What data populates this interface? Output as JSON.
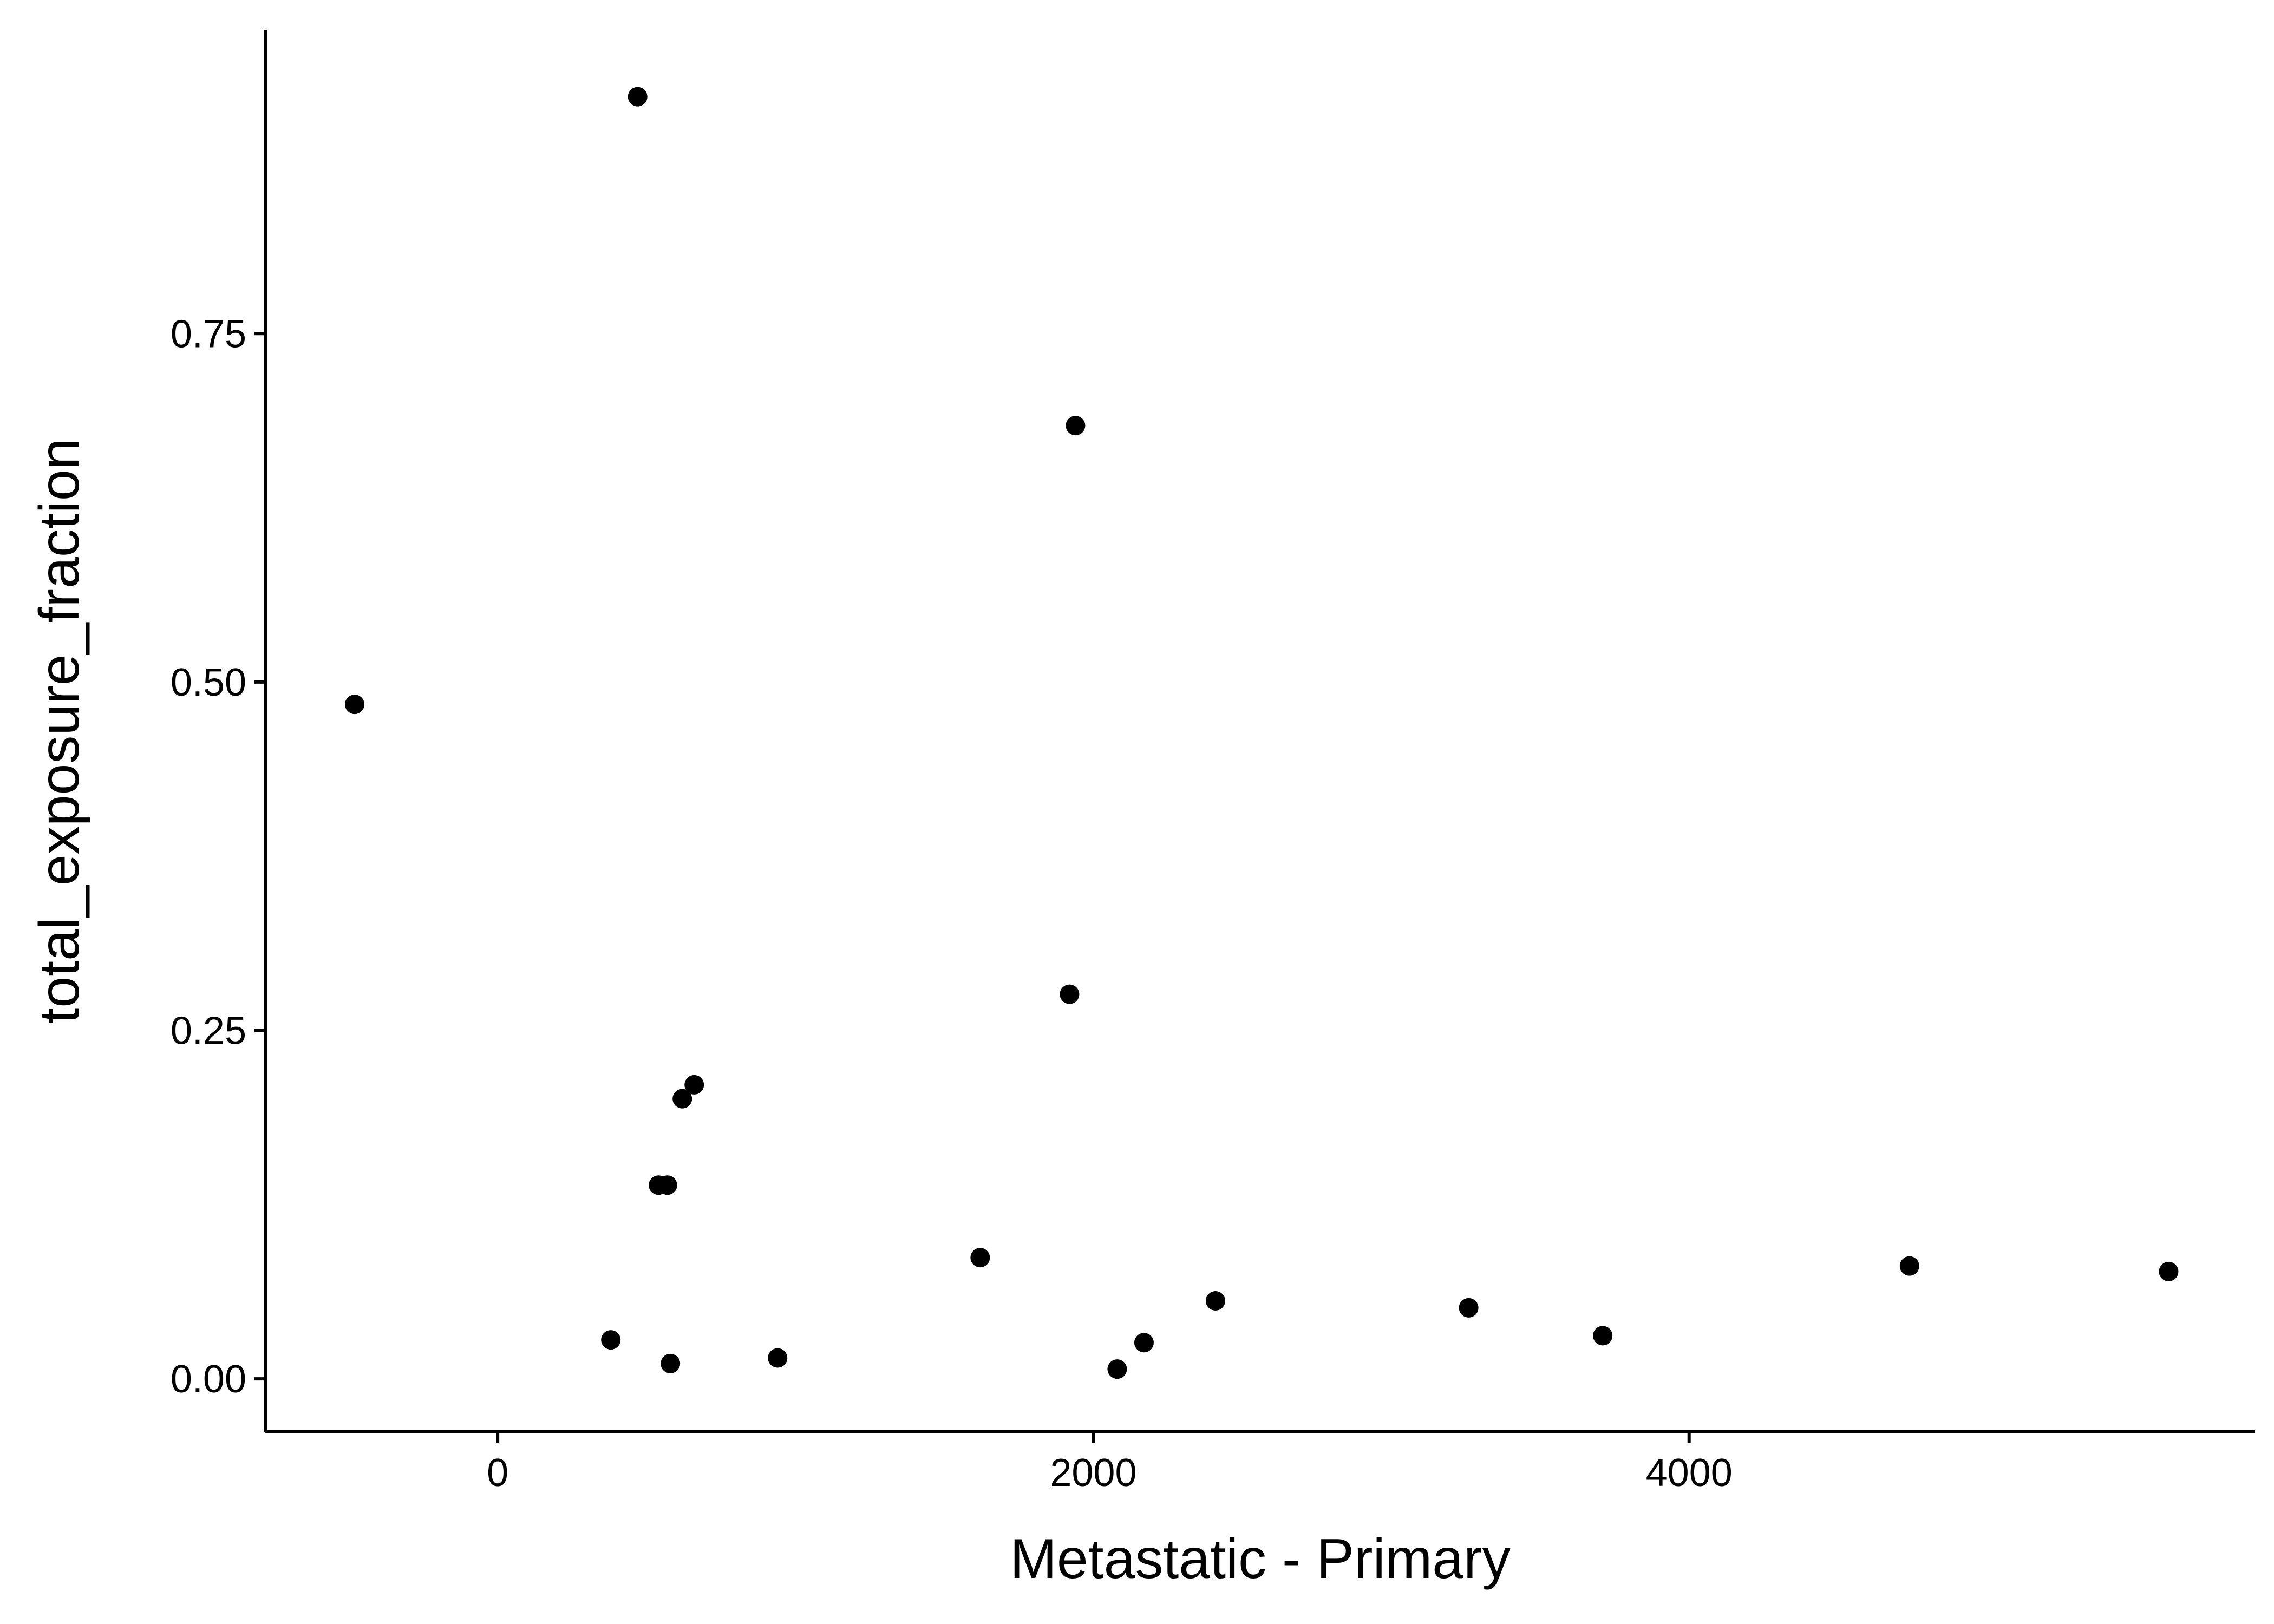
{
  "chart_data": {
    "type": "scatter",
    "title": "",
    "xlabel": "Metastatic - Primary",
    "ylabel": "total_exposure_fraction",
    "xlim": [
      -780,
      5900
    ],
    "ylim": [
      -0.038,
      0.968
    ],
    "x_ticks": [
      0,
      2000,
      4000
    ],
    "x_tick_labels": [
      "0",
      "2000",
      "4000"
    ],
    "y_ticks": [
      0,
      0.25,
      0.5,
      0.75
    ],
    "y_tick_labels": [
      "0.00",
      "0.25",
      "0.50",
      "0.75"
    ],
    "grid": false,
    "legend": "none",
    "point_color": "#000000",
    "points": [
      {
        "x": -480,
        "y": 0.484
      },
      {
        "x": 470,
        "y": 0.92
      },
      {
        "x": 380,
        "y": 0.028
      },
      {
        "x": 540,
        "y": 0.139
      },
      {
        "x": 570,
        "y": 0.139
      },
      {
        "x": 580,
        "y": 0.011
      },
      {
        "x": 620,
        "y": 0.201
      },
      {
        "x": 660,
        "y": 0.211
      },
      {
        "x": 940,
        "y": 0.015
      },
      {
        "x": 1620,
        "y": 0.087
      },
      {
        "x": 1920,
        "y": 0.276
      },
      {
        "x": 1940,
        "y": 0.684
      },
      {
        "x": 2080,
        "y": 0.007
      },
      {
        "x": 2170,
        "y": 0.026
      },
      {
        "x": 2410,
        "y": 0.056
      },
      {
        "x": 3260,
        "y": 0.051
      },
      {
        "x": 3710,
        "y": 0.031
      },
      {
        "x": 4740,
        "y": 0.081
      },
      {
        "x": 5610,
        "y": 0.077
      }
    ]
  }
}
